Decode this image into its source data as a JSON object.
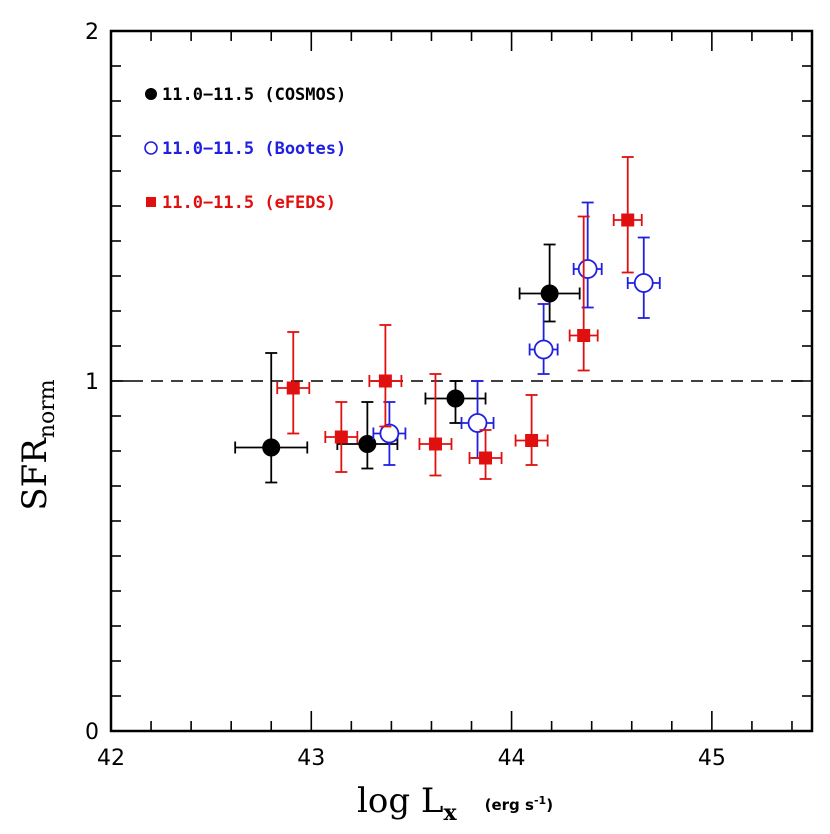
{
  "chart_data": {
    "type": "scatter",
    "xlabel": "log L",
    "xlabel_sub": "x",
    "xlabel_unit": "(erg s",
    "xlabel_unit_exp": "-1",
    "xlabel_unit_close": ")",
    "ylabel": "SFR",
    "ylabel_sub": "norm",
    "xlim": [
      42,
      45.5
    ],
    "ylim": [
      0,
      2
    ],
    "xticks": [
      42,
      43,
      44,
      45
    ],
    "yticks": [
      0,
      1,
      2
    ],
    "x_minor_step": 0.2,
    "y_minor_step": 0.1,
    "grid": false,
    "reference_line": {
      "y": 1,
      "style": "dashed"
    },
    "legend_position": "top-left",
    "series": [
      {
        "name": "11.0−11.5 (COSMOS)",
        "color": "#000000",
        "marker": "filled-circle",
        "points": [
          {
            "x": 42.8,
            "y": 0.81,
            "xerr": 0.18,
            "yerr_low": 0.1,
            "yerr_high": 0.27
          },
          {
            "x": 43.28,
            "y": 0.82,
            "xerr": 0.15,
            "yerr_low": 0.07,
            "yerr_high": 0.12
          },
          {
            "x": 43.72,
            "y": 0.95,
            "xerr": 0.15,
            "yerr_low": 0.07,
            "yerr_high": 0.05
          },
          {
            "x": 44.19,
            "y": 1.25,
            "xerr": 0.15,
            "yerr_low": 0.08,
            "yerr_high": 0.14
          }
        ]
      },
      {
        "name": "11.0−11.5 (Bootes)",
        "color": "#2020e0",
        "marker": "open-circle",
        "points": [
          {
            "x": 43.39,
            "y": 0.85,
            "xerr": 0.08,
            "yerr_low": 0.09,
            "yerr_high": 0.09
          },
          {
            "x": 43.83,
            "y": 0.88,
            "xerr": 0.08,
            "yerr_low": 0.1,
            "yerr_high": 0.12
          },
          {
            "x": 44.16,
            "y": 1.09,
            "xerr": 0.07,
            "yerr_low": 0.07,
            "yerr_high": 0.13
          },
          {
            "x": 44.38,
            "y": 1.32,
            "xerr": 0.07,
            "yerr_low": 0.11,
            "yerr_high": 0.19
          },
          {
            "x": 44.66,
            "y": 1.28,
            "xerr": 0.08,
            "yerr_low": 0.1,
            "yerr_high": 0.13
          }
        ]
      },
      {
        "name": "11.0−11.5 (eFEDS)",
        "color": "#e01010",
        "marker": "filled-square",
        "points": [
          {
            "x": 42.91,
            "y": 0.98,
            "xerr": 0.08,
            "yerr_low": 0.13,
            "yerr_high": 0.16
          },
          {
            "x": 43.15,
            "y": 0.84,
            "xerr": 0.08,
            "yerr_low": 0.1,
            "yerr_high": 0.1
          },
          {
            "x": 43.37,
            "y": 1.0,
            "xerr": 0.08,
            "yerr_low": 0.13,
            "yerr_high": 0.16
          },
          {
            "x": 43.62,
            "y": 0.82,
            "xerr": 0.08,
            "yerr_low": 0.09,
            "yerr_high": 0.2
          },
          {
            "x": 43.87,
            "y": 0.78,
            "xerr": 0.08,
            "yerr_low": 0.06,
            "yerr_high": 0.08
          },
          {
            "x": 44.1,
            "y": 0.83,
            "xerr": 0.08,
            "yerr_low": 0.07,
            "yerr_high": 0.13
          },
          {
            "x": 44.36,
            "y": 1.13,
            "xerr": 0.07,
            "yerr_low": 0.1,
            "yerr_high": 0.34
          },
          {
            "x": 44.58,
            "y": 1.46,
            "xerr": 0.07,
            "yerr_low": 0.15,
            "yerr_high": 0.18
          }
        ]
      }
    ]
  }
}
